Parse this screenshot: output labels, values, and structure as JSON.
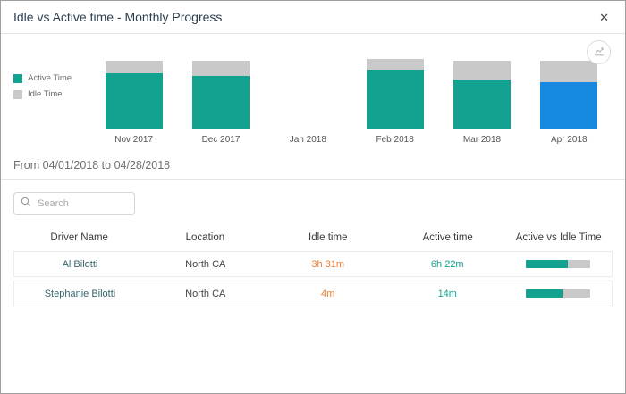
{
  "modal": {
    "title": "Idle vs Active time - Monthly Progress",
    "close_icon": "✕"
  },
  "toolbar": {
    "export_icon": "export-chart"
  },
  "colors": {
    "active": "#12a28f",
    "idle": "#c9c9c9",
    "highlight": "#1789e0",
    "idle_text": "#ed7d31",
    "active_text": "#12a28f"
  },
  "legend": {
    "active_label": "Active Time",
    "idle_label": "Idle Time"
  },
  "chart_data": {
    "type": "bar",
    "subtype": "stacked",
    "categories": [
      "Nov 2017",
      "Dec 2017",
      "Jan 2018",
      "Feb 2018",
      "Mar 2018",
      "Apr 2018"
    ],
    "series": [
      {
        "name": "Active Time",
        "values": [
          79,
          76,
          0,
          84,
          71,
          67
        ]
      },
      {
        "name": "Idle Time",
        "values": [
          19,
          21,
          0,
          16,
          27,
          31
        ]
      }
    ],
    "highlight_index": 5,
    "title": "Idle vs Active time - Monthly Progress",
    "xlabel": "",
    "ylabel": "",
    "ylim": [
      0,
      100
    ],
    "grid": false,
    "legend_position": "left",
    "value_unit": "percent of plot height"
  },
  "period": {
    "label": "From 04/01/2018 to 04/28/2018"
  },
  "search": {
    "placeholder": "Search",
    "value": ""
  },
  "table": {
    "headers": [
      "Driver Name",
      "Location",
      "Idle time",
      "Active time",
      "Active vs Idle Time"
    ],
    "rows": [
      {
        "driver": "Al Bilotti",
        "location": "North CA",
        "idle": "3h 31m",
        "active": "6h 22m",
        "active_pct": 65
      },
      {
        "driver": "Stephanie Bilotti",
        "location": "North CA",
        "idle": "4m",
        "active": "14m",
        "active_pct": 57
      }
    ]
  }
}
